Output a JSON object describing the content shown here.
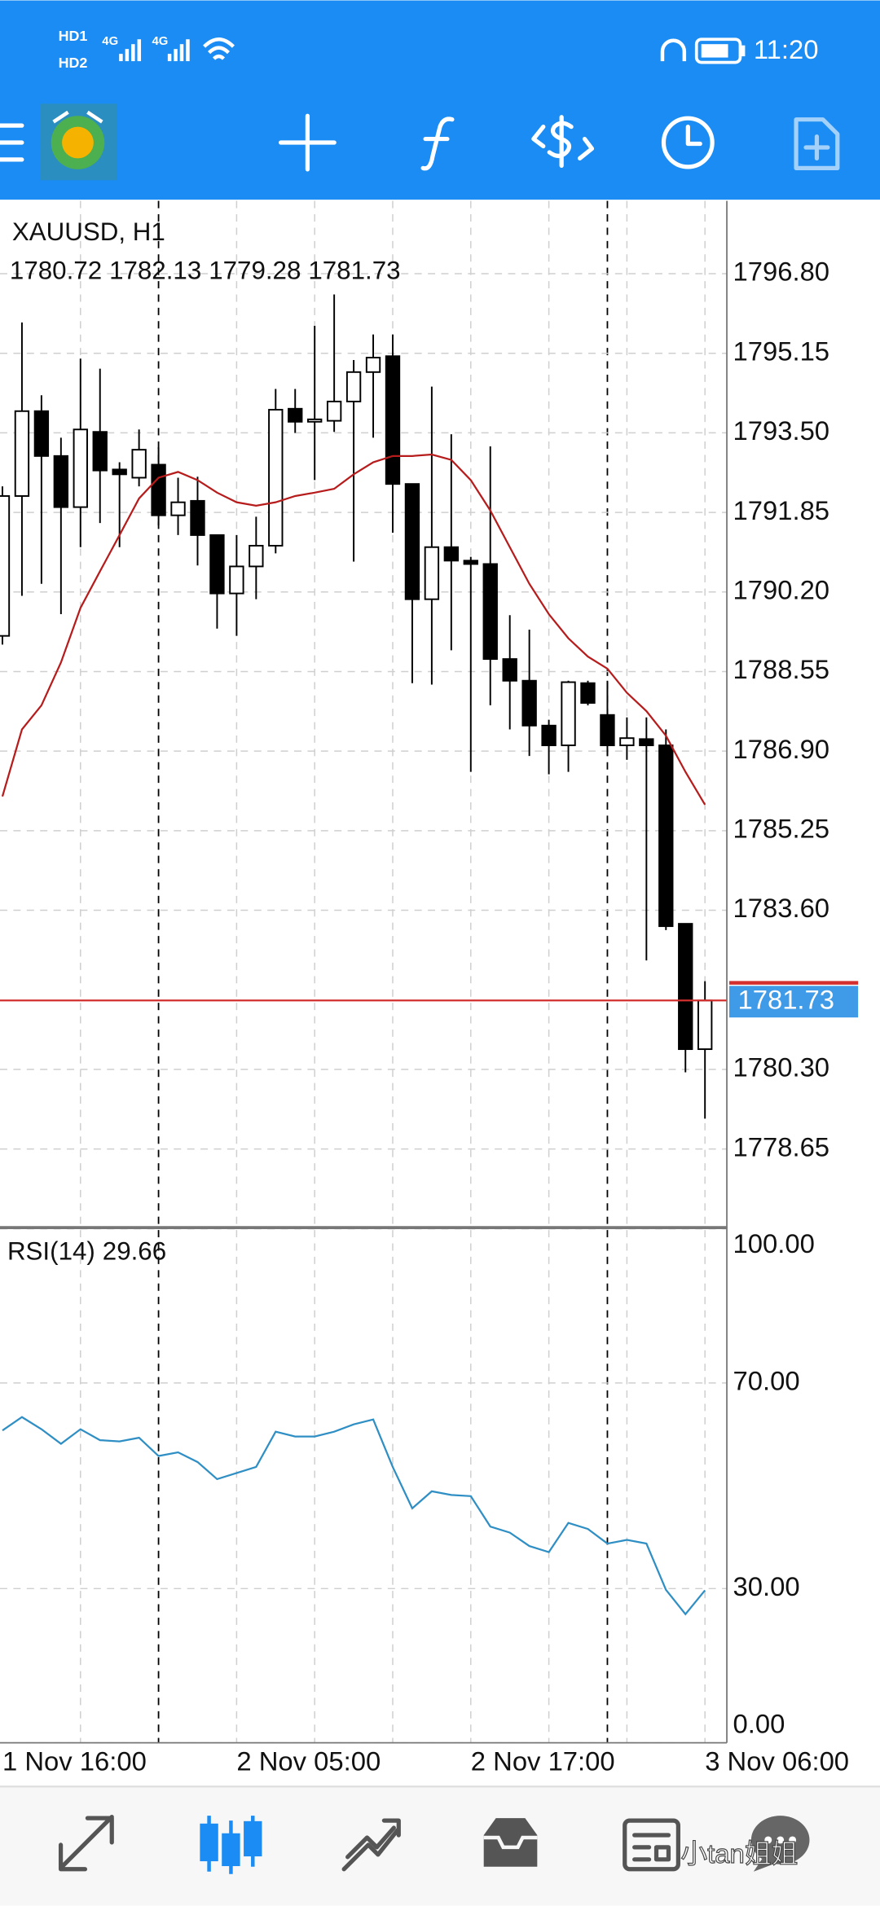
{
  "status_bar": {
    "network": [
      "HD1",
      "HD2",
      "4G",
      "4G"
    ],
    "time": "11:20"
  },
  "watermark": "小tan姐姐",
  "chart_data": {
    "type": "candlestick",
    "symbol": "XAUUSD, H1",
    "categories": [
      "1 Nov 16:00",
      null,
      null,
      null,
      null,
      null,
      null,
      null,
      null,
      null,
      null,
      null,
      "2 Nov 05:00",
      null,
      null,
      null,
      null,
      null,
      null,
      null,
      null,
      null,
      null,
      null,
      "2 Nov 17:00",
      null,
      null,
      null,
      null,
      null,
      null,
      null,
      null,
      null,
      null,
      null,
      "3 Nov 06:00"
    ],
    "candles": [
      [
        1789.29,
        1792.39,
        1789.11,
        1792.19
      ],
      [
        1792.19,
        1795.79,
        1790.12,
        1793.95
      ],
      [
        1793.95,
        1794.28,
        1790.37,
        1793.02
      ],
      [
        1793.02,
        1793.4,
        1789.74,
        1791.96
      ],
      [
        1791.96,
        1795.04,
        1791.13,
        1793.57
      ],
      [
        1793.52,
        1794.83,
        1791.63,
        1792.72
      ],
      [
        1792.74,
        1792.89,
        1791.13,
        1792.64
      ],
      [
        1792.57,
        1793.57,
        1792.39,
        1793.15
      ],
      [
        1792.84,
        1793.2,
        1791.58,
        1791.79
      ],
      [
        1791.79,
        1792.57,
        1791.38,
        1792.06
      ],
      [
        1792.09,
        1792.59,
        1790.75,
        1791.38
      ],
      [
        1791.38,
        1791.38,
        1789.44,
        1790.17
      ],
      [
        1790.17,
        1791.38,
        1789.29,
        1790.73
      ],
      [
        1790.73,
        1791.76,
        1790.05,
        1791.16
      ],
      [
        1791.16,
        1794.41,
        1791.0,
        1793.98
      ],
      [
        1794.0,
        1794.41,
        1793.5,
        1793.73
      ],
      [
        1793.73,
        1795.72,
        1792.52,
        1793.78
      ],
      [
        1793.75,
        1796.37,
        1793.52,
        1794.15
      ],
      [
        1794.15,
        1795.01,
        1790.83,
        1794.76
      ],
      [
        1794.76,
        1795.54,
        1793.4,
        1795.06
      ],
      [
        1795.09,
        1795.54,
        1791.43,
        1792.44
      ],
      [
        1792.44,
        1792.44,
        1788.31,
        1790.05
      ],
      [
        1790.05,
        1794.46,
        1788.28,
        1791.13
      ],
      [
        1791.13,
        1793.47,
        1788.99,
        1790.85
      ],
      [
        1790.85,
        1790.93,
        1786.47,
        1790.78
      ],
      [
        1790.78,
        1793.22,
        1787.85,
        1788.81
      ],
      [
        1788.81,
        1789.72,
        1787.35,
        1788.36
      ],
      [
        1788.36,
        1789.42,
        1786.8,
        1787.43
      ],
      [
        1787.43,
        1787.55,
        1786.42,
        1787.02
      ],
      [
        1787.02,
        1788.36,
        1786.47,
        1788.33
      ],
      [
        1788.31,
        1788.36,
        1787.85,
        1787.9
      ],
      [
        1787.65,
        1788.36,
        1786.8,
        1787.02
      ],
      [
        1787.02,
        1787.6,
        1786.72,
        1787.17
      ],
      [
        1787.15,
        1787.6,
        1782.56,
        1787.02
      ],
      [
        1787.02,
        1787.35,
        1783.19,
        1783.27
      ],
      [
        1783.32,
        1783.32,
        1780.24,
        1780.72
      ],
      [
        1780.72,
        1782.13,
        1779.28,
        1781.73
      ]
    ],
    "ylim": [
      1777.02,
      1798.31
    ],
    "yticks": [
      {
        "value": 1796.8,
        "label": "1796.80"
      },
      {
        "value": 1795.15,
        "label": "1795.15"
      },
      {
        "value": 1793.5,
        "label": "1793.50"
      },
      {
        "value": 1791.85,
        "label": "1791.85"
      },
      {
        "value": 1790.2,
        "label": "1790.20"
      },
      {
        "value": 1788.55,
        "label": "1788.55"
      },
      {
        "value": 1786.9,
        "label": "1786.90"
      },
      {
        "value": 1785.25,
        "label": "1785.25"
      },
      {
        "value": 1783.6,
        "label": "1783.60"
      },
      {
        "value": 1780.3,
        "label": "1780.30"
      },
      {
        "value": 1778.65,
        "label": "1778.65"
      }
    ],
    "grid": true,
    "last_price": 1781.73,
    "ma": {
      "color": "#b71c1c",
      "values": [
        1785.96,
        1787.35,
        1787.85,
        1788.74,
        1789.87,
        1790.63,
        1791.38,
        1792.14,
        1792.57,
        1792.69,
        1792.52,
        1792.26,
        1792.06,
        1791.99,
        1792.06,
        1792.19,
        1792.26,
        1792.34,
        1792.64,
        1792.89,
        1793.02,
        1793.02,
        1793.05,
        1792.94,
        1792.52,
        1791.89,
        1791.13,
        1790.37,
        1789.74,
        1789.24,
        1788.86,
        1788.61,
        1788.11,
        1787.73,
        1787.22,
        1786.47,
        1785.79
      ]
    },
    "rsi": {
      "label": "RSI(14)",
      "color": "#2f8fc4",
      "values": [
        60.77,
        63.37,
        61.01,
        58.17,
        61.01,
        58.88,
        58.64,
        59.35,
        55.8,
        56.51,
        54.62,
        51.3,
        52.49,
        53.67,
        60.53,
        59.59,
        59.59,
        60.53,
        61.95,
        62.9,
        53.67,
        45.62,
        48.93,
        48.22,
        47.99,
        42.07,
        40.89,
        38.28,
        37.1,
        42.78,
        41.6,
        38.76,
        39.47,
        38.76,
        29.76,
        25.03,
        29.66
      ],
      "ylim": [
        0,
        100
      ],
      "yticks": [
        {
          "value": 100,
          "label": "100.00"
        },
        {
          "value": 70,
          "label": "70.00"
        },
        {
          "value": 30,
          "label": "30.00"
        },
        {
          "value": 0,
          "label": "0.00"
        }
      ]
    }
  }
}
